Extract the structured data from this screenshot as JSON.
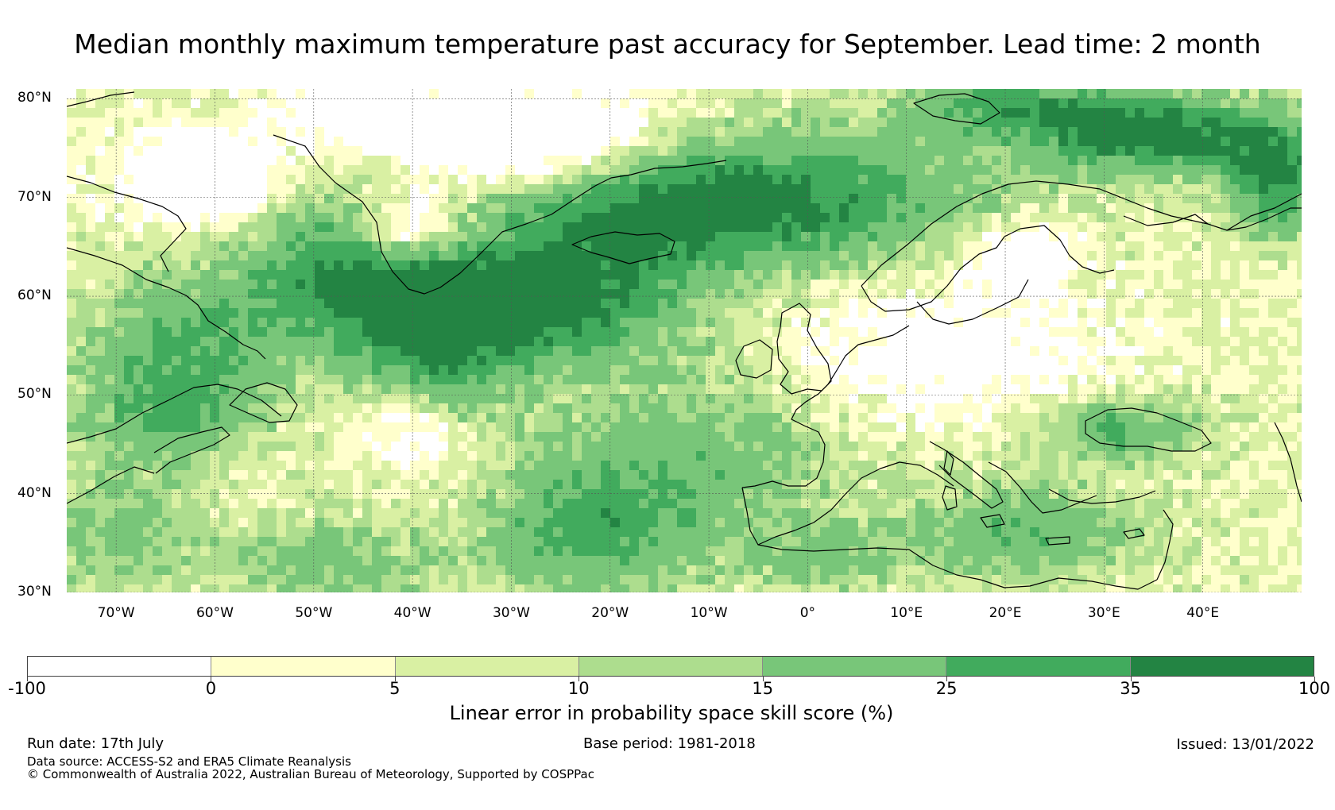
{
  "title": "Median monthly maximum temperature past accuracy for September. Lead time: 2 month",
  "map": {
    "region": "North Atlantic and Europe",
    "lon_range": [
      -75,
      50
    ],
    "lat_range": [
      30,
      81
    ],
    "lat_labels": [
      "80°N",
      "70°N",
      "60°N",
      "50°N",
      "40°N",
      "30°N"
    ],
    "lon_labels": [
      "70°W",
      "60°W",
      "50°W",
      "40°W",
      "30°W",
      "20°W",
      "10°W",
      "0°",
      "10°E",
      "20°E",
      "30°E",
      "40°E"
    ],
    "gridlines": true,
    "coastline_color": "#000000"
  },
  "colorbar": {
    "title": "Linear error in probability space skill score (%)",
    "boundaries": [
      "-100",
      "0",
      "5",
      "10",
      "15",
      "25",
      "35",
      "100"
    ],
    "colors": [
      "#ffffff",
      "#ffffcc",
      "#d9f0a3",
      "#addd8e",
      "#78c679",
      "#41ab5d",
      "#238443"
    ]
  },
  "footer": {
    "run_date": "Run date: 17th July",
    "base_period": "Base period: 1981-2018",
    "issued": "Issued: 13/01/2022",
    "data_source": "Data source: ACCESS-S2 and ERA5 Climate Reanalysis",
    "copyright": "© Commonwealth of Australia 2022, Australian Bureau of Meteorology, Supported by COSPPac"
  }
}
